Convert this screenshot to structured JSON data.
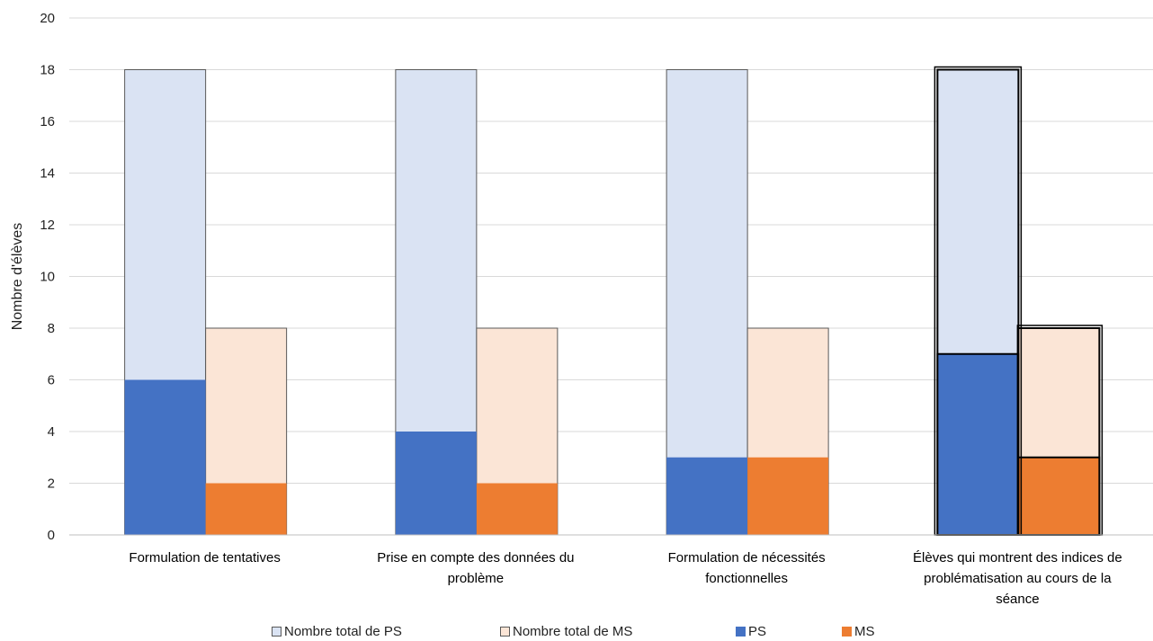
{
  "chart_data": {
    "type": "bar",
    "ylabel": "Nombre d'élèves",
    "xlabel": "",
    "ylim": [
      0,
      20
    ],
    "ytick_step": 2,
    "grid": true,
    "legend_placement": "bottom",
    "categories": [
      [
        "Formulation de  tentatives"
      ],
      [
        "Prise en compte des données du",
        "problème"
      ],
      [
        "Formulation de nécessités",
        "fonctionnelles"
      ],
      [
        "Élèves qui montrent des indices de",
        "problématisation au cours de la",
        "séance"
      ]
    ],
    "series": [
      {
        "name": "Nombre total de PS",
        "values": [
          18,
          18,
          18,
          18
        ],
        "color": "#DAE3F3",
        "group": "PS"
      },
      {
        "name": "Nombre total de MS",
        "values": [
          8,
          8,
          8,
          8
        ],
        "color": "#FBE5D6",
        "group": "MS"
      },
      {
        "name": "PS",
        "values": [
          6,
          4,
          3,
          7
        ],
        "color": "#4472C4",
        "group": "PS"
      },
      {
        "name": "MS",
        "values": [
          2,
          2,
          3,
          3
        ],
        "color": "#ED7D31",
        "group": "MS"
      }
    ],
    "highlighted_category_index": 3
  }
}
